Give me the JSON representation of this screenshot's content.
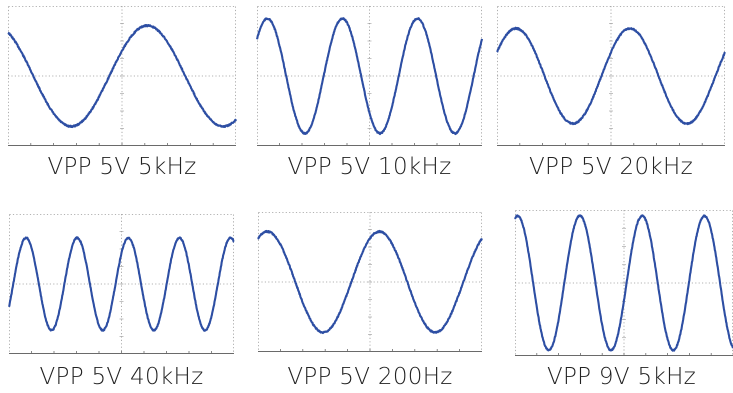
{
  "chart_data": [
    {
      "type": "line",
      "title": "VPP 5V 5kHz",
      "xlabel": "",
      "ylabel": "",
      "grid": true,
      "colors": {
        "trace": "#2d4ea3",
        "grid": "#9a9a9a"
      },
      "series": [
        {
          "cycles": 1.5,
          "phase_deg": 120,
          "amplitude": 0.72
        }
      ],
      "ylim": [
        -1,
        1
      ]
    },
    {
      "type": "line",
      "title": "VPP 5V 10kHz",
      "xlabel": "",
      "ylabel": "",
      "grid": true,
      "colors": {
        "trace": "#2d4ea3",
        "grid": "#9a9a9a"
      },
      "series": [
        {
          "cycles": 3.0,
          "phase_deg": 40,
          "amplitude": 0.82
        }
      ],
      "ylim": [
        -1,
        1
      ]
    },
    {
      "type": "line",
      "title": "VPP 5V 20kHz",
      "xlabel": "",
      "ylabel": "",
      "grid": true,
      "colors": {
        "trace": "#2d4ea3",
        "grid": "#9a9a9a"
      },
      "series": [
        {
          "cycles": 2.0,
          "phase_deg": 30,
          "amplitude": 0.68
        }
      ],
      "ylim": [
        -1,
        1
      ]
    },
    {
      "type": "line",
      "title": "VPP 5V 40kHz",
      "xlabel": "",
      "ylabel": "",
      "grid": true,
      "colors": {
        "trace": "#2d4ea3",
        "grid": "#9a9a9a"
      },
      "series": [
        {
          "cycles": 4.4,
          "phase_deg": 330,
          "amplitude": 0.66
        }
      ],
      "ylim": [
        -1,
        1
      ]
    },
    {
      "type": "line",
      "title": "VPP 5V 200Hz",
      "xlabel": "",
      "ylabel": "",
      "grid": true,
      "colors": {
        "trace": "#2d4ea3",
        "grid": "#9a9a9a"
      },
      "series": [
        {
          "cycles": 2.0,
          "phase_deg": 60,
          "amplitude": 0.72
        }
      ],
      "ylim": [
        -1,
        1
      ]
    },
    {
      "type": "line",
      "title": "VPP 9V 5kHz",
      "xlabel": "",
      "ylabel": "",
      "grid": true,
      "colors": {
        "trace": "#2d4ea3",
        "grid": "#9a9a9a"
      },
      "series": [
        {
          "cycles": 3.5,
          "phase_deg": 75,
          "amplitude": 0.92
        }
      ],
      "ylim": [
        -1,
        1
      ]
    }
  ]
}
